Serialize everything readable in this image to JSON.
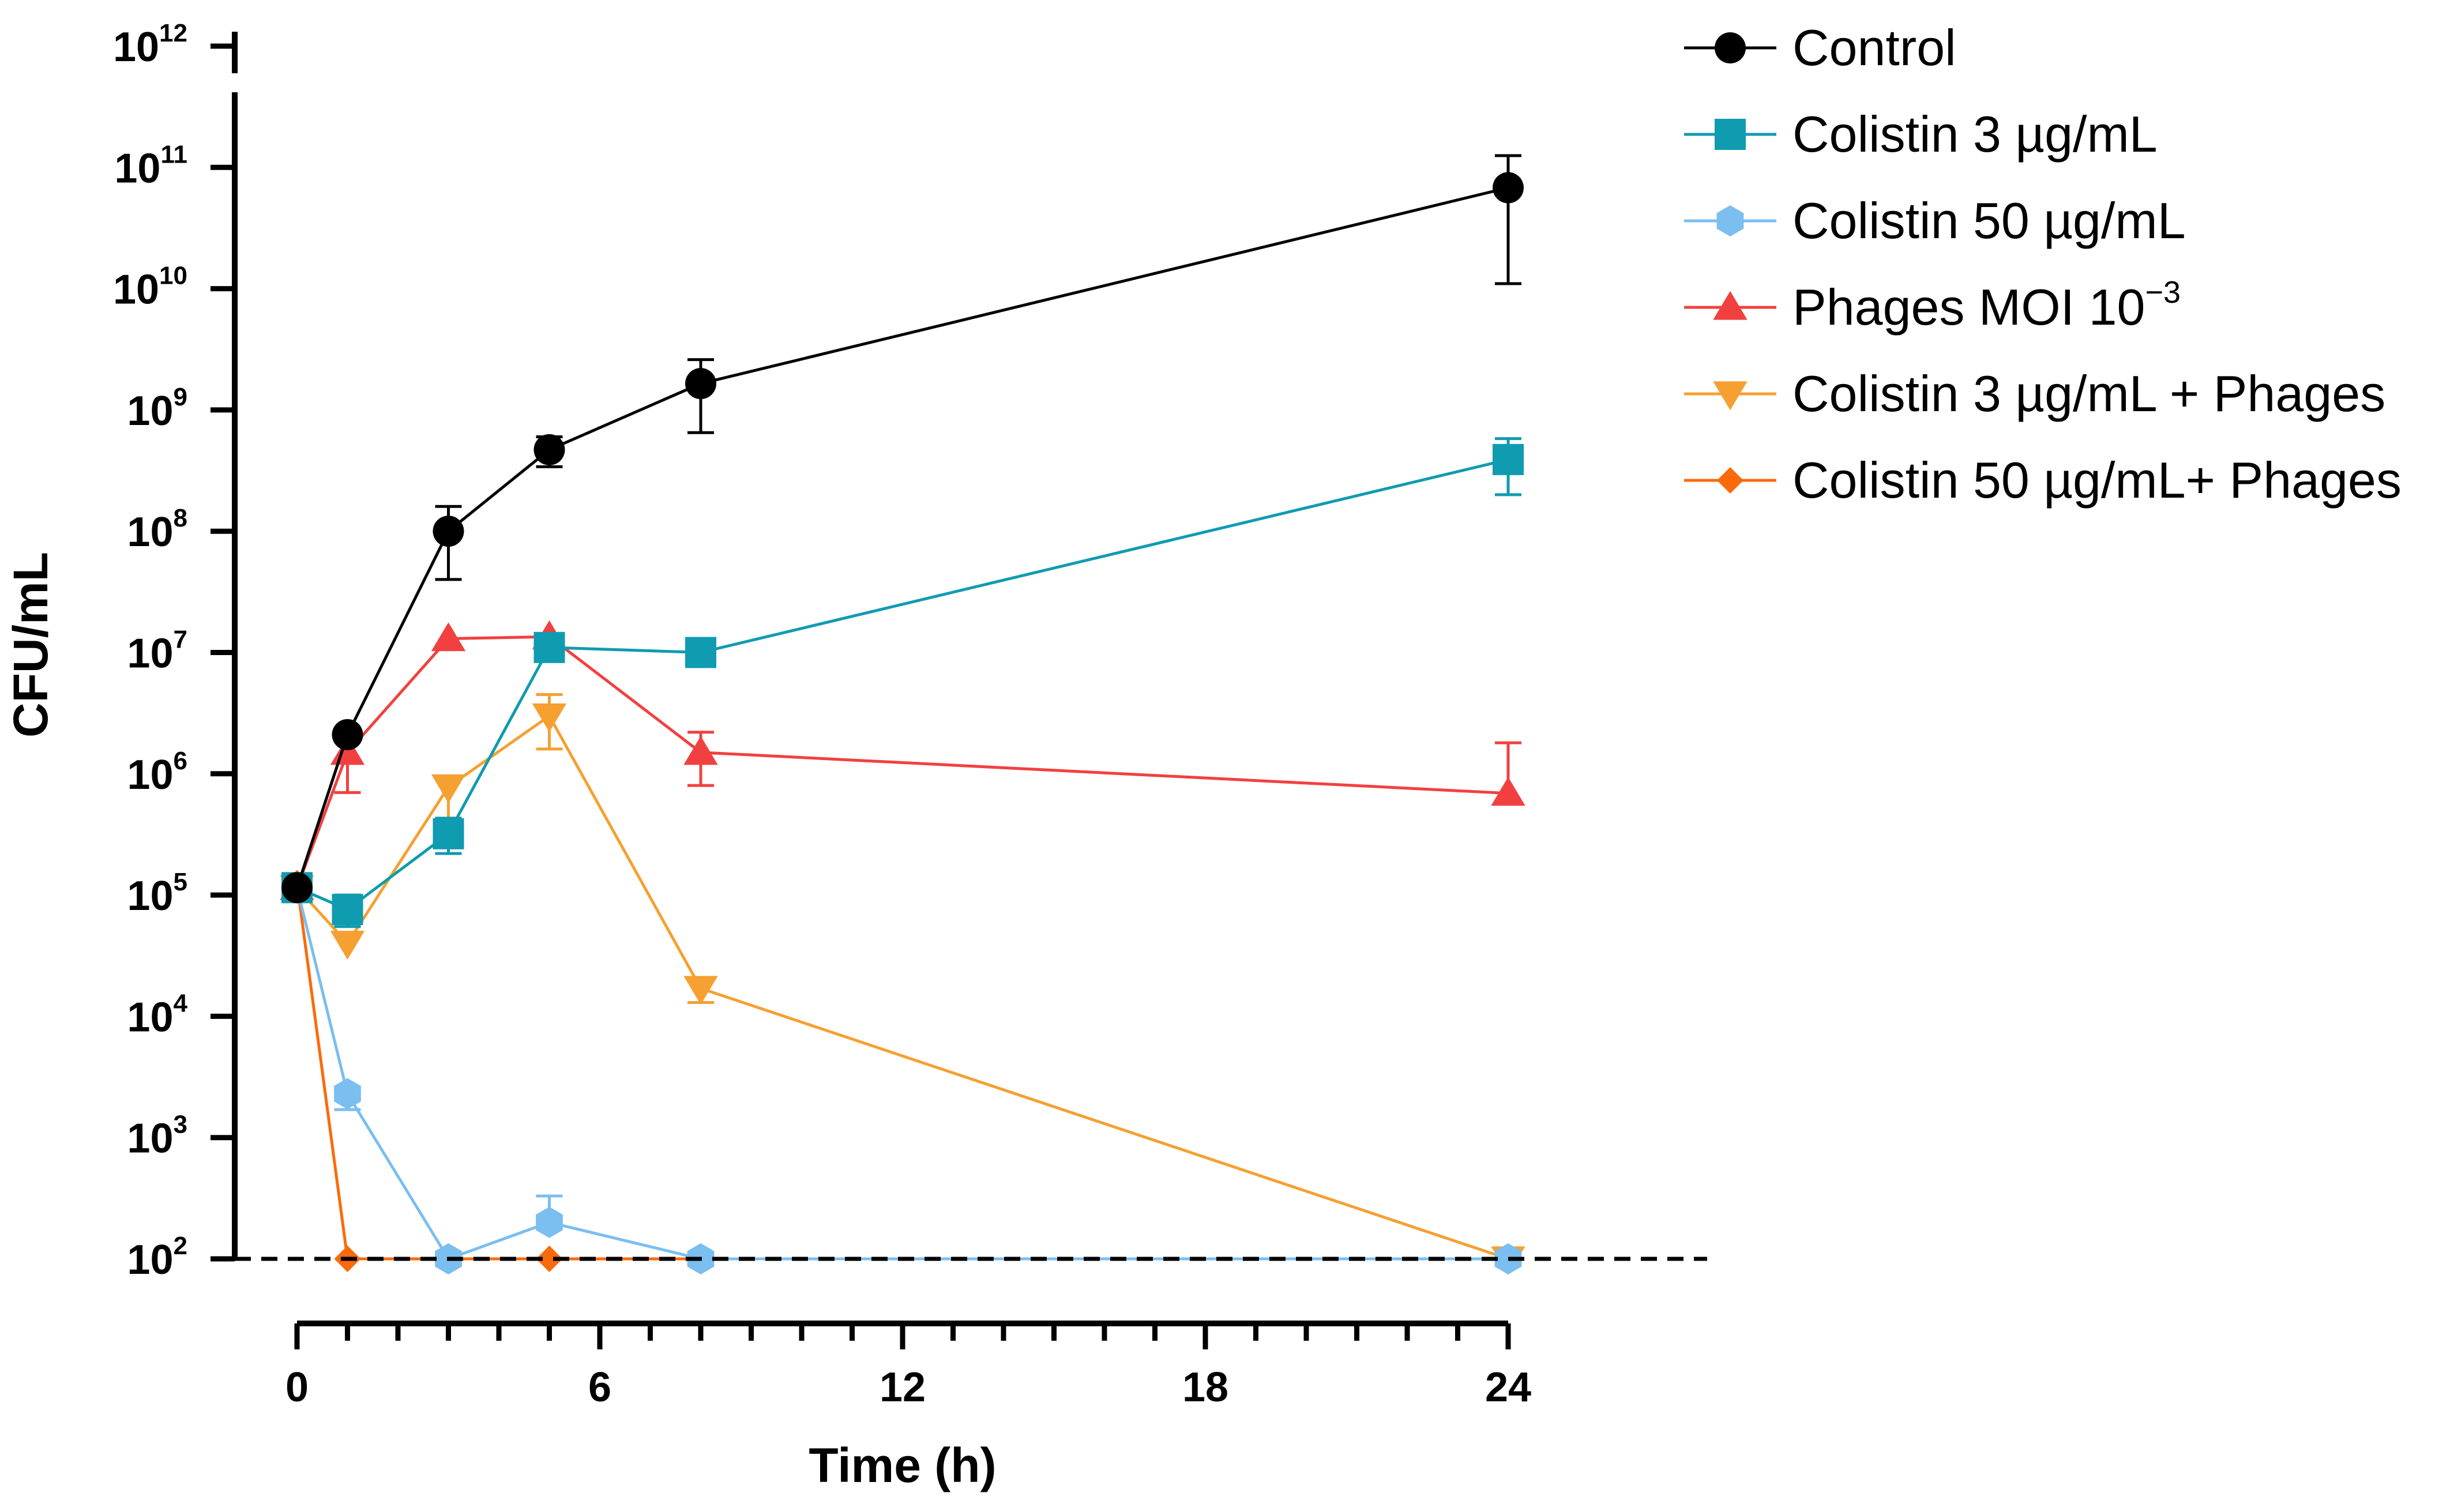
{
  "chart_data": {
    "type": "line",
    "title": "",
    "xlabel": "Time (h)",
    "ylabel": "CFU/mL",
    "x_scale": "linear",
    "y_scale": "log10",
    "xlim": [
      0,
      24
    ],
    "ylim": [
      100,
      1000000000000
    ],
    "x_ticks": [
      {
        "value": 0,
        "label": "0"
      },
      {
        "value": 6,
        "label": "6"
      },
      {
        "value": 12,
        "label": "12"
      },
      {
        "value": 18,
        "label": "18"
      },
      {
        "value": 24,
        "label": "24"
      }
    ],
    "x_minor_step": 1,
    "y_ticks": [
      {
        "value": 100,
        "base": "10",
        "exp": "2"
      },
      {
        "value": 1000,
        "base": "10",
        "exp": "3"
      },
      {
        "value": 10000,
        "base": "10",
        "exp": "4"
      },
      {
        "value": 100000,
        "base": "10",
        "exp": "5"
      },
      {
        "value": 1000000,
        "base": "10",
        "exp": "6"
      },
      {
        "value": 10000000,
        "base": "10",
        "exp": "7"
      },
      {
        "value": 100000000,
        "base": "10",
        "exp": "8"
      },
      {
        "value": 1000000000,
        "base": "10",
        "exp": "9"
      },
      {
        "value": 10000000000,
        "base": "10",
        "exp": "10"
      },
      {
        "value": 100000000000,
        "base": "10",
        "exp": "11"
      },
      {
        "value": 1000000000000,
        "base": "10",
        "exp": "12"
      }
    ],
    "detection_limit": 100,
    "legend_position": "top-right",
    "grid": false,
    "series": [
      {
        "name": "Control",
        "name_sup": "",
        "color": "#000000",
        "marker": "circle",
        "points": [
          {
            "x": 0,
            "y": 115000,
            "err_up": null,
            "err_down": null
          },
          {
            "x": 1,
            "y": 2100000,
            "err_up": null,
            "err_down": null
          },
          {
            "x": 3,
            "y": 100000000,
            "err_up": 160000000,
            "err_down": 40000000
          },
          {
            "x": 5,
            "y": 470000000,
            "err_up": 600000000,
            "err_down": 340000000
          },
          {
            "x": 8,
            "y": 1650000000,
            "err_up": 2600000000,
            "err_down": 650000000
          },
          {
            "x": 24,
            "y": 68000000000,
            "err_up": 125000000000,
            "err_down": 11000000000
          }
        ]
      },
      {
        "name": "Colistin 3 µg/mL",
        "name_sup": "",
        "color": "#0f9bb0",
        "marker": "square",
        "points": [
          {
            "x": 0,
            "y": 115000,
            "err_up": null,
            "err_down": null
          },
          {
            "x": 1,
            "y": 76000,
            "err_up": 100000,
            "err_down": 55000
          },
          {
            "x": 3,
            "y": 320000,
            "err_up": 430000,
            "err_down": 220000
          },
          {
            "x": 5,
            "y": 11000000,
            "err_up": 12500000,
            "err_down": 9500000
          },
          {
            "x": 8,
            "y": 10000000,
            "err_up": null,
            "err_down": null
          },
          {
            "x": 24,
            "y": 390000000,
            "err_up": 580000000,
            "err_down": 200000000
          }
        ]
      },
      {
        "name": "Colistin 50 µg/mL",
        "name_sup": "",
        "color": "#7bbef0",
        "marker": "hexagon",
        "points": [
          {
            "x": 0,
            "y": 115000,
            "err_up": null,
            "err_down": null
          },
          {
            "x": 1,
            "y": 2300,
            "err_up": null,
            "err_down": 1700
          },
          {
            "x": 3,
            "y": 100,
            "err_up": null,
            "err_down": null
          },
          {
            "x": 5,
            "y": 200,
            "err_up": 330,
            "err_down": null
          },
          {
            "x": 8,
            "y": 100,
            "err_up": null,
            "err_down": null
          },
          {
            "x": 24,
            "y": 100,
            "err_up": null,
            "err_down": null
          }
        ]
      },
      {
        "name": "Phages MOI 10",
        "name_sup": "−3",
        "color": "#f24040",
        "marker": "triangle-up",
        "points": [
          {
            "x": 0,
            "y": 115000,
            "err_up": null,
            "err_down": null
          },
          {
            "x": 1,
            "y": 1500000,
            "err_up": null,
            "err_down": 700000
          },
          {
            "x": 3,
            "y": 13000000,
            "err_up": null,
            "err_down": null
          },
          {
            "x": 5,
            "y": 13500000,
            "err_up": null,
            "err_down": null
          },
          {
            "x": 8,
            "y": 1500000,
            "err_up": 2200000,
            "err_down": 800000
          },
          {
            "x": 24,
            "y": 690000,
            "err_up": 1800000,
            "err_down": null
          }
        ]
      },
      {
        "name": "Colistin 3 µg/mL + Phages",
        "name_sup": "",
        "color": "#f5a030",
        "marker": "triangle-down",
        "points": [
          {
            "x": 0,
            "y": 115000,
            "err_up": null,
            "err_down": null
          },
          {
            "x": 1,
            "y": 40000,
            "err_up": null,
            "err_down": null
          },
          {
            "x": 3,
            "y": 780000,
            "err_up": null,
            "err_down": 430000
          },
          {
            "x": 5,
            "y": 3000000,
            "err_up": 4500000,
            "err_down": 1600000
          },
          {
            "x": 8,
            "y": 17000,
            "err_up": null,
            "err_down": 13000
          },
          {
            "x": 24,
            "y": 100,
            "err_up": null,
            "err_down": null
          }
        ]
      },
      {
        "name": "Colistin 50 µg/mL+ Phages",
        "name_sup": "",
        "color": "#fb6a0a",
        "marker": "diamond",
        "points": [
          {
            "x": 0,
            "y": 125000,
            "err_up": null,
            "err_down": null
          },
          {
            "x": 1,
            "y": 100,
            "err_up": null,
            "err_down": null
          },
          {
            "x": 3,
            "y": 100,
            "err_up": null,
            "err_down": null
          },
          {
            "x": 5,
            "y": 100,
            "err_up": null,
            "err_down": null
          },
          {
            "x": 8,
            "y": 100,
            "err_up": null,
            "err_down": null
          },
          {
            "x": 24,
            "y": 100,
            "err_up": null,
            "err_down": null
          }
        ]
      }
    ]
  }
}
